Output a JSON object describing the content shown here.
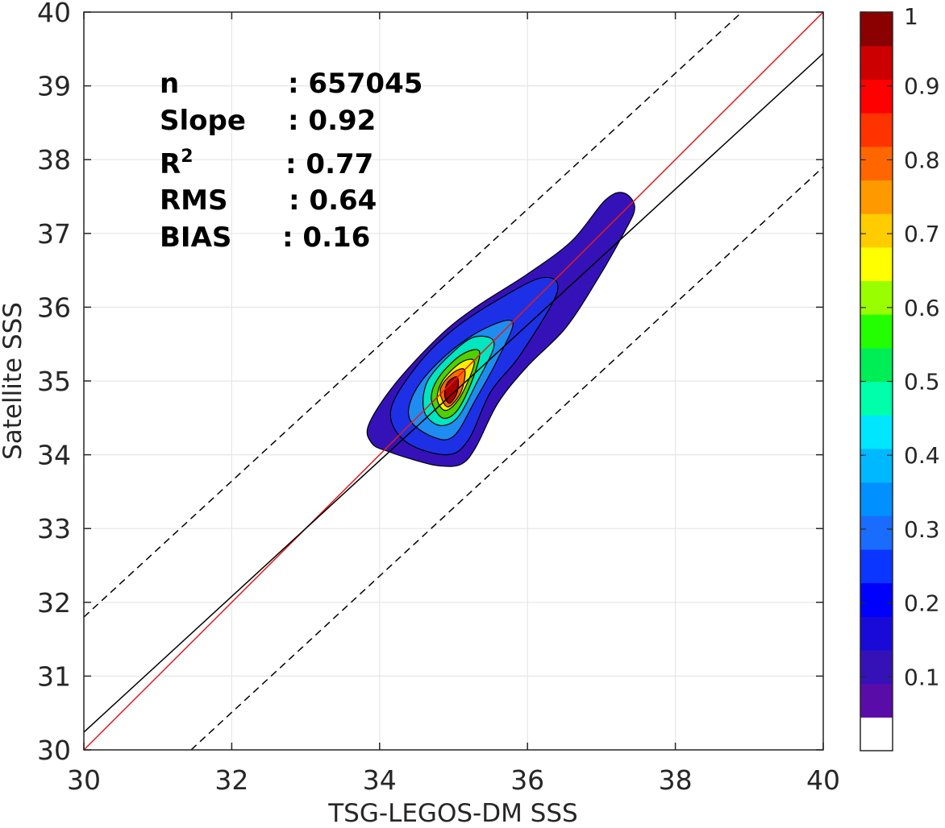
{
  "chart_data": {
    "type": "contour",
    "xlabel": "TSG-LEGOS-DM SSS",
    "ylabel": "Satellite SSS",
    "xlim": [
      30,
      40
    ],
    "ylim": [
      30,
      40
    ],
    "x_ticks": [
      "30",
      "32",
      "34",
      "36",
      "38",
      "40"
    ],
    "y_ticks": [
      "30",
      "31",
      "32",
      "33",
      "34",
      "35",
      "36",
      "37",
      "38",
      "39",
      "40"
    ],
    "grid": true,
    "stats": [
      {
        "name": "n",
        "value": ": 657045"
      },
      {
        "name": "Slope",
        "value": ": 0.92"
      },
      {
        "name": "R",
        "superscript": "2",
        "value": ": 0.77"
      },
      {
        "name": "RMS",
        "value": ": 0.64"
      },
      {
        "name": "BIAS",
        "value": ": 0.16"
      }
    ],
    "lines": [
      {
        "kind": "one-to-one",
        "color": "#e41a1c",
        "style": "solid",
        "points": [
          [
            30,
            30
          ],
          [
            40,
            40
          ]
        ]
      },
      {
        "kind": "regression",
        "color": "#000000",
        "style": "solid",
        "points": [
          [
            30,
            30.24
          ],
          [
            40,
            39.44
          ]
        ]
      },
      {
        "kind": "upper-bound",
        "color": "#000000",
        "style": "dashed",
        "points": [
          [
            30,
            31.8
          ],
          [
            38.9,
            40
          ]
        ]
      },
      {
        "kind": "lower-bound",
        "color": "#000000",
        "style": "dashed",
        "points": [
          [
            31.45,
            30
          ],
          [
            40,
            37.9
          ]
        ]
      }
    ],
    "contours": [
      {
        "level": 0.05,
        "color": "#3512b8",
        "points": [
          [
            34.5,
            33.92
          ],
          [
            34.8,
            33.85
          ],
          [
            35.1,
            33.87
          ],
          [
            35.3,
            34.1
          ],
          [
            35.6,
            34.7
          ],
          [
            36.0,
            35.2
          ],
          [
            36.5,
            35.7
          ],
          [
            36.9,
            36.3
          ],
          [
            37.3,
            37.0
          ],
          [
            37.45,
            37.35
          ],
          [
            37.3,
            37.55
          ],
          [
            37.05,
            37.45
          ],
          [
            36.6,
            36.9
          ],
          [
            36.0,
            36.45
          ],
          [
            35.3,
            36.0
          ],
          [
            34.8,
            35.6
          ],
          [
            34.2,
            34.95
          ],
          [
            33.85,
            34.4
          ],
          [
            33.9,
            34.15
          ],
          [
            34.1,
            34.05
          ]
        ]
      },
      {
        "level": 0.15,
        "color": "#1e30e6",
        "points": [
          [
            34.35,
            34.18
          ],
          [
            34.9,
            34.0
          ],
          [
            35.2,
            34.2
          ],
          [
            35.5,
            34.85
          ],
          [
            35.9,
            35.35
          ],
          [
            36.4,
            36.2
          ],
          [
            36.2,
            36.4
          ],
          [
            35.6,
            36.1
          ],
          [
            35.0,
            35.7
          ],
          [
            34.5,
            35.2
          ],
          [
            34.15,
            34.6
          ]
        ]
      },
      {
        "level": 0.25,
        "color": "#1f8cf0",
        "points": [
          [
            34.7,
            34.25
          ],
          [
            35.0,
            34.25
          ],
          [
            35.3,
            34.75
          ],
          [
            35.6,
            35.3
          ],
          [
            35.8,
            35.8
          ],
          [
            35.4,
            35.7
          ],
          [
            34.9,
            35.35
          ],
          [
            34.5,
            34.9
          ],
          [
            34.4,
            34.5
          ]
        ]
      },
      {
        "level": 0.4,
        "color": "#00e6c0",
        "points": [
          [
            34.8,
            34.4
          ],
          [
            35.05,
            34.5
          ],
          [
            35.3,
            34.95
          ],
          [
            35.55,
            35.5
          ],
          [
            35.3,
            35.6
          ],
          [
            35.0,
            35.4
          ],
          [
            34.65,
            35.0
          ],
          [
            34.6,
            34.6
          ]
        ]
      },
      {
        "level": 0.55,
        "color": "#4fd000",
        "points": [
          [
            34.85,
            34.5
          ],
          [
            35.05,
            34.6
          ],
          [
            35.25,
            35.0
          ],
          [
            35.35,
            35.4
          ],
          [
            35.1,
            35.35
          ],
          [
            34.8,
            35.05
          ],
          [
            34.7,
            34.75
          ]
        ]
      },
      {
        "level": 0.65,
        "color": "#ffee00",
        "points": [
          [
            34.9,
            34.6
          ],
          [
            35.1,
            34.8
          ],
          [
            35.28,
            35.25
          ],
          [
            35.1,
            35.25
          ],
          [
            34.85,
            35.0
          ],
          [
            34.78,
            34.75
          ]
        ]
      },
      {
        "level": 0.8,
        "color": "#ff6a00",
        "points": [
          [
            34.92,
            34.65
          ],
          [
            35.1,
            34.85
          ],
          [
            35.15,
            35.15
          ],
          [
            34.98,
            35.1
          ],
          [
            34.82,
            34.88
          ]
        ]
      },
      {
        "level": 0.95,
        "color": "#a90000",
        "points": [
          [
            34.95,
            34.7
          ],
          [
            35.05,
            34.85
          ],
          [
            35.05,
            35.05
          ],
          [
            34.92,
            34.98
          ],
          [
            34.88,
            34.8
          ]
        ]
      }
    ],
    "colorbar": {
      "ticks": [
        "0.1",
        "0.2",
        "0.3",
        "0.4",
        "0.5",
        "0.6",
        "0.7",
        "0.8",
        "0.9",
        "1"
      ],
      "tick_values": [
        0.1,
        0.2,
        0.3,
        0.4,
        0.5,
        0.6,
        0.7,
        0.8,
        0.9,
        1.0
      ],
      "range": [
        0,
        1
      ],
      "colors": [
        "#ffffff",
        "#5a0ca8",
        "#3512b8",
        "#1a0ad8",
        "#0000ff",
        "#0a36ff",
        "#1a6cff",
        "#0090ff",
        "#00b8ff",
        "#00e6ff",
        "#00ffaa",
        "#00ee55",
        "#23ff00",
        "#99ff00",
        "#ffff00",
        "#ffcc00",
        "#ff9900",
        "#ff6600",
        "#ff3300",
        "#ff0000",
        "#cc0000",
        "#8b0000"
      ]
    }
  }
}
